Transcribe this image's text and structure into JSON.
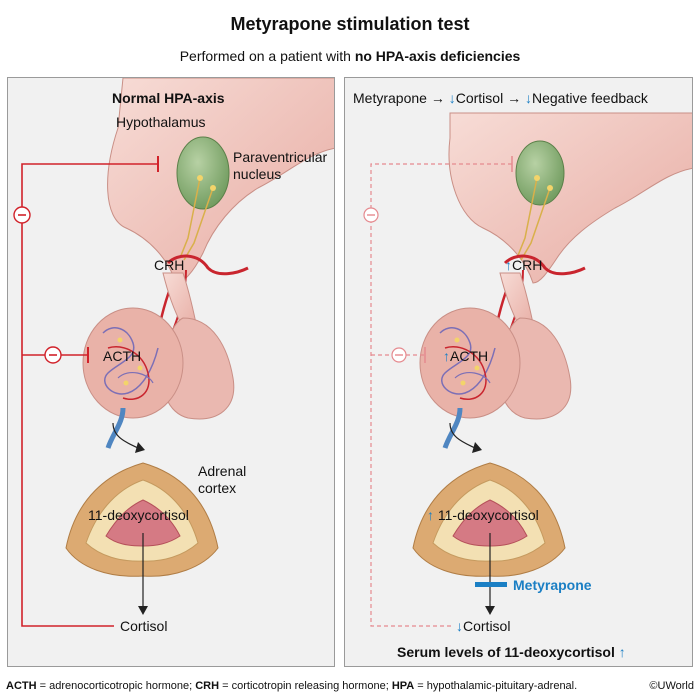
{
  "title": "Metyrapone stimulation test",
  "subtitle": {
    "prefix": "Performed on a patient with ",
    "emphasis": "no HPA-axis deficiencies"
  },
  "left_panel": {
    "heading": "Normal HPA-axis",
    "hypothalamus": "Hypothalamus",
    "paraventricular_1": "Paraventricular",
    "paraventricular_2": "nucleus",
    "crh": "CRH",
    "acth": "ACTH",
    "adrenal_1": "Adrenal",
    "adrenal_2": "cortex",
    "deoxycortisol": "11-deoxycortisol",
    "cortisol": "Cortisol"
  },
  "right_panel": {
    "heading_metyrapone": "Metyrapone",
    "heading_cortisol": "Cortisol",
    "heading_feedback": "Negative feedback",
    "right_arrow": "→",
    "up_arrow": "↑",
    "down_arrow": "↓",
    "crh": "CRH",
    "acth": "ACTH",
    "deoxycortisol": "11-deoxycortisol",
    "metyrapone": "Metyrapone",
    "cortisol": "Cortisol",
    "serum_levels": "Serum levels of 11-deoxycortisol"
  },
  "footnote": {
    "acth_abbr": "ACTH",
    "acth_def": " = adrenocorticotropic hormone; ",
    "crh_abbr": "CRH",
    "crh_def": " = corticotropin releasing hormone; ",
    "hpa_abbr": "HPA",
    "hpa_def": " = hypothalamic-pituitary-adrenal."
  },
  "copyright": "©UWorld",
  "colors": {
    "feedback_red": "#d1222a",
    "metyrapone_blue": "#1b7fc4",
    "tissue_pink": "#efc4bd",
    "nucleus_green": "#8fb27e",
    "adrenal_tan": "#d8a670"
  }
}
